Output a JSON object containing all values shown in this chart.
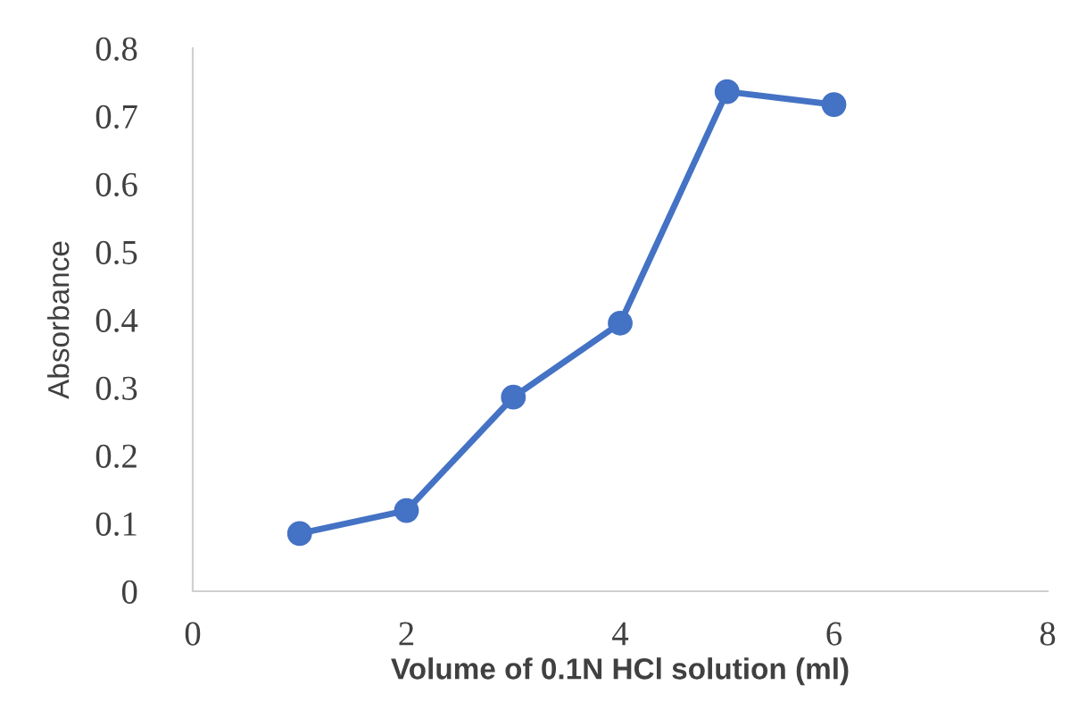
{
  "chart_data": {
    "type": "line",
    "xlabel": "Volume of 0.1N HCl solution (ml)",
    "ylabel": "Absorbance",
    "x": [
      1,
      2,
      3,
      4,
      5,
      6
    ],
    "series": [
      {
        "color": "#4472c4",
        "values": [
          0.085,
          0.119,
          0.286,
          0.395,
          0.736,
          0.717
        ]
      }
    ],
    "xlim": [
      0,
      8
    ],
    "xticks": [
      0,
      2,
      4,
      6,
      8
    ],
    "ylim": [
      0,
      0.8
    ],
    "yticks": [
      0,
      0.1,
      0.2,
      0.3,
      0.4,
      0.5,
      0.6,
      0.7,
      0.8
    ],
    "marker": "circle",
    "line_style": "solid",
    "grid": false,
    "legend": false
  }
}
